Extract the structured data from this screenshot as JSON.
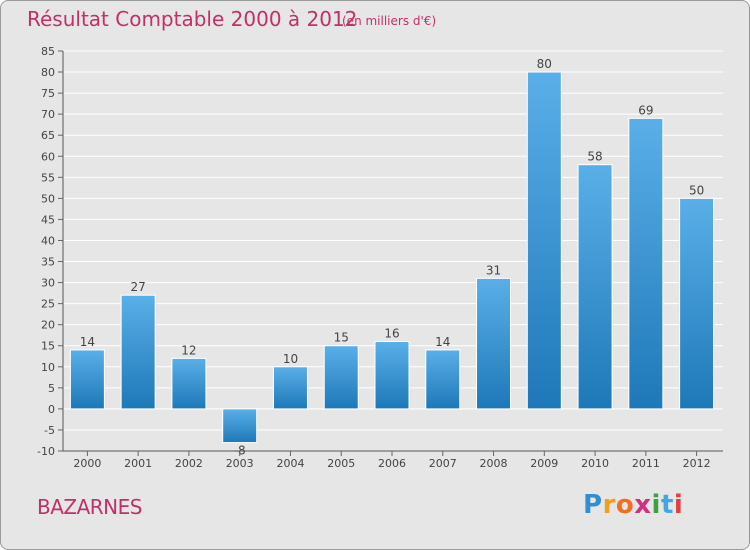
{
  "title": "Résultat Comptable 2000 à 2012",
  "subtitle": "(en milliers d'€)",
  "commune": "BAZARNES",
  "logo": {
    "letters": [
      "P",
      "r",
      "o",
      "x",
      "i",
      "t",
      "i"
    ],
    "colors": [
      "#2e8fd6",
      "#f0a020",
      "#f07020",
      "#d03080",
      "#40a040",
      "#40a8e0",
      "#e04040"
    ]
  },
  "colors": {
    "bar_top": "#5aafe8",
    "bar_bottom": "#1e78b8",
    "title": "#c0306a",
    "background": "#e6e6e6",
    "grid": "#ffffff"
  },
  "chart_data": {
    "type": "bar",
    "title": "Résultat Comptable 2000 à 2012",
    "ylabel": "en milliers d'€",
    "xlabel": "",
    "categories": [
      "2000",
      "2001",
      "2002",
      "2003",
      "2004",
      "2005",
      "2006",
      "2007",
      "2008",
      "2009",
      "2010",
      "2011",
      "2012"
    ],
    "values": [
      14,
      27,
      12,
      -8,
      10,
      15,
      16,
      14,
      31,
      80,
      58,
      69,
      50
    ],
    "ylim": [
      -10,
      85
    ],
    "ytick_step": 5,
    "grid": true,
    "legend": "none"
  }
}
